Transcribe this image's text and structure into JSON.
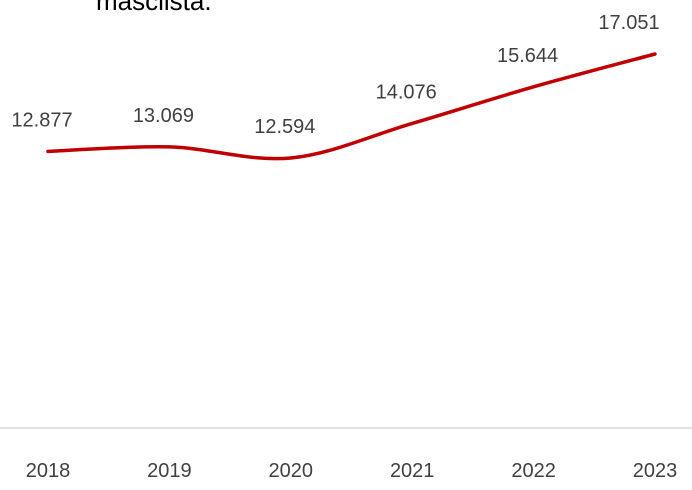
{
  "chart_data": {
    "type": "line",
    "title": "masclista.",
    "categories": [
      "2018",
      "2019",
      "2020",
      "2021",
      "2022",
      "2023"
    ],
    "series": [
      {
        "values": [
          12877,
          13069,
          12594,
          14076,
          15644,
          17051
        ],
        "labels": [
          "12.877",
          "13.069",
          "12.594",
          "14.076",
          "15.644",
          "17.051"
        ],
        "color": "#c00000"
      }
    ],
    "xlabel": "",
    "ylabel": "",
    "grid": false,
    "legend": false,
    "axis_color": "#d9d9d9"
  }
}
